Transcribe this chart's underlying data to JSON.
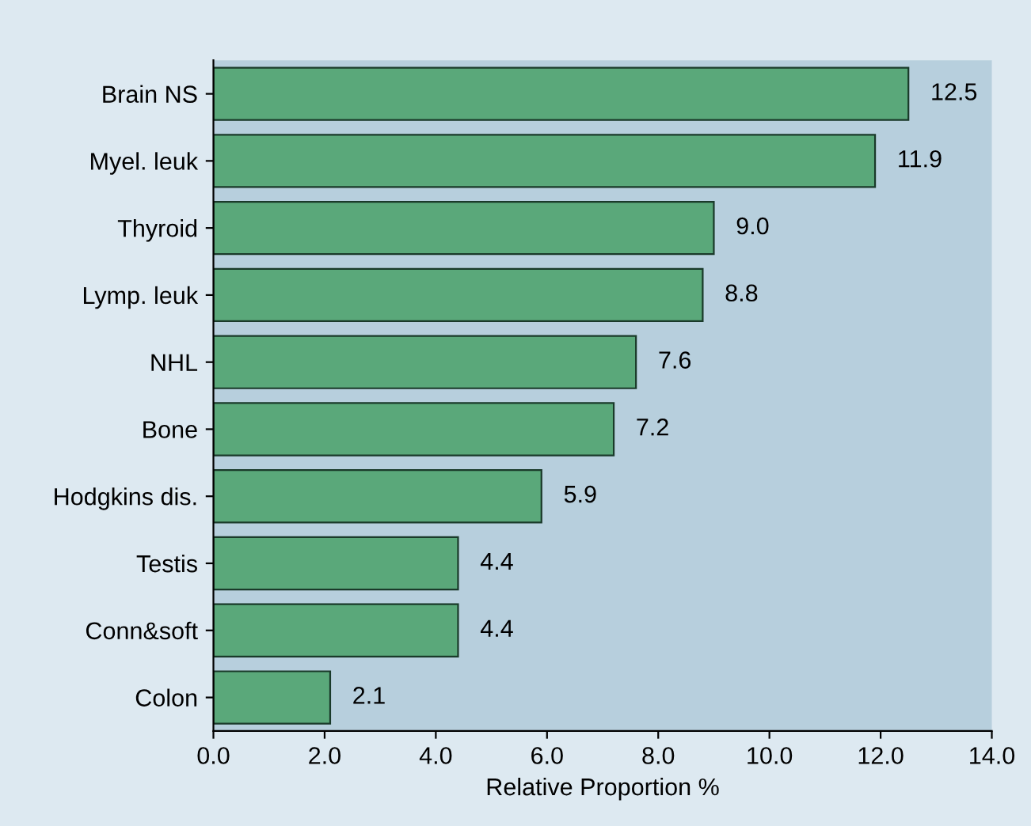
{
  "chart_data": {
    "type": "bar",
    "orientation": "horizontal",
    "categories": [
      "Brain NS",
      "Myel. leuk",
      "Thyroid",
      "Lymp. leuk",
      "NHL",
      "Bone",
      "Hodgkins dis.",
      "Testis",
      "Conn&soft",
      "Colon"
    ],
    "values": [
      12.5,
      11.9,
      9.0,
      8.8,
      7.6,
      7.2,
      5.9,
      4.4,
      4.4,
      2.1
    ],
    "value_labels": [
      "12.5",
      "11.9",
      "9.0",
      "8.8",
      "7.6",
      "7.2",
      "5.9",
      "4.4",
      "4.4",
      "2.1"
    ],
    "color": "#5aa87a",
    "xlabel": "Relative Proportion %",
    "xlim": [
      0,
      14
    ],
    "xticks": [
      {
        "value": 0,
        "label": "0.0"
      },
      {
        "value": 2,
        "label": "2.0"
      },
      {
        "value": 4,
        "label": "4.0"
      },
      {
        "value": 6,
        "label": "6.0"
      },
      {
        "value": 8,
        "label": "8.0"
      },
      {
        "value": 10,
        "label": "10.0"
      },
      {
        "value": 12,
        "label": "12.0"
      },
      {
        "value": 14,
        "label": "14.0"
      }
    ]
  }
}
